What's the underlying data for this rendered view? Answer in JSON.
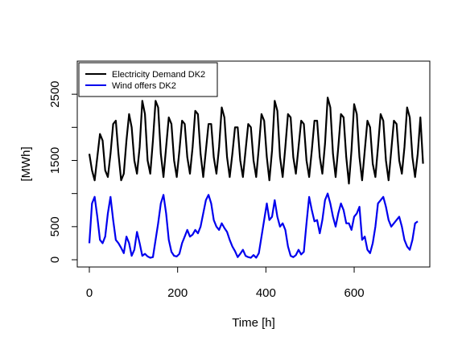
{
  "chart_data": {
    "type": "line",
    "title": "",
    "xlabel": "Time [h]",
    "ylabel": "[MWh]",
    "xlim": [
      0,
      744
    ],
    "ylim": [
      0,
      3000
    ],
    "x_ticks": [
      0,
      200,
      400,
      600
    ],
    "x_tick_labels": [
      "0",
      "200",
      "400",
      "600"
    ],
    "y_ticks": [
      0,
      500,
      1000,
      1500,
      2000,
      2500
    ],
    "y_tick_labels": [
      "0",
      "500",
      "",
      "1500",
      "",
      "2500"
    ],
    "grid": false,
    "legend": {
      "position": "top-left",
      "entries": [
        "Electricity Demand DK2",
        "Wind offers DK2"
      ]
    },
    "series": [
      {
        "name": "Electricity Demand DK2",
        "color": "#000000",
        "x_start": 0,
        "x_step": 6,
        "values": [
          1600,
          1350,
          1200,
          1550,
          1900,
          1800,
          1350,
          1250,
          1600,
          2050,
          2100,
          1600,
          1200,
          1300,
          1800,
          2200,
          2000,
          1500,
          1300,
          1700,
          2400,
          2200,
          1500,
          1300,
          1800,
          2400,
          2300,
          1600,
          1250,
          1700,
          2150,
          2050,
          1500,
          1250,
          1650,
          2100,
          2050,
          1550,
          1300,
          1700,
          2250,
          2200,
          1600,
          1250,
          1650,
          2050,
          2050,
          1550,
          1300,
          1700,
          2300,
          2150,
          1550,
          1250,
          1600,
          2000,
          2000,
          1500,
          1250,
          1650,
          2050,
          2000,
          1500,
          1250,
          1700,
          2200,
          2100,
          1550,
          1200,
          1650,
          2400,
          2250,
          1550,
          1250,
          1700,
          2200,
          2150,
          1550,
          1300,
          1700,
          2100,
          2050,
          1500,
          1250,
          1650,
          2100,
          2100,
          1550,
          1300,
          1750,
          2450,
          2300,
          1600,
          1250,
          1700,
          2200,
          2150,
          1550,
          1150,
          1650,
          2350,
          2200,
          1550,
          1200,
          1650,
          2100,
          2000,
          1450,
          1250,
          1700,
          2200,
          2100,
          1500,
          1200,
          1650,
          2100,
          2050,
          1500,
          1300,
          1700,
          2300,
          2150,
          1550,
          1250,
          1600,
          2150,
          1450
        ]
      },
      {
        "name": "Wind offers DK2",
        "color": "#0000ee",
        "x_start": 0,
        "x_step": 6,
        "values": [
          250,
          850,
          950,
          650,
          300,
          250,
          350,
          700,
          950,
          600,
          300,
          250,
          180,
          100,
          350,
          250,
          60,
          150,
          420,
          250,
          60,
          90,
          50,
          30,
          40,
          300,
          550,
          850,
          980,
          700,
          300,
          120,
          60,
          50,
          90,
          250,
          350,
          450,
          350,
          380,
          450,
          400,
          500,
          700,
          900,
          980,
          850,
          600,
          500,
          450,
          550,
          480,
          420,
          300,
          200,
          130,
          40,
          90,
          150,
          60,
          40,
          30,
          70,
          30,
          100,
          350,
          600,
          850,
          600,
          650,
          900,
          650,
          500,
          550,
          450,
          200,
          60,
          40,
          70,
          150,
          80,
          120,
          550,
          950,
          750,
          580,
          600,
          400,
          600,
          900,
          1000,
          850,
          650,
          500,
          700,
          850,
          750,
          550,
          550,
          450,
          650,
          700,
          800,
          300,
          350,
          150,
          100,
          250,
          500,
          850,
          900,
          950,
          800,
          600,
          500,
          550,
          600,
          650,
          500,
          300,
          200,
          150,
          300,
          550,
          580
        ]
      }
    ]
  }
}
